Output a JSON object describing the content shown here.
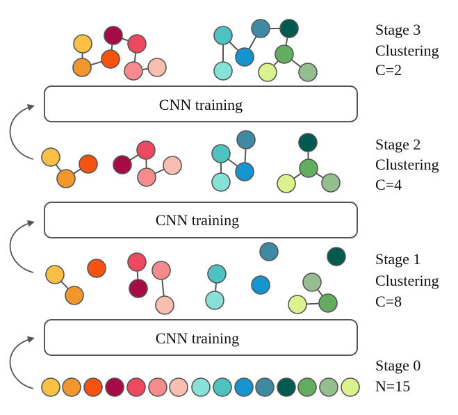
{
  "colors": {
    "n1": "#F8C146",
    "n2": "#F2962E",
    "n3": "#F65313",
    "n4": "#A60B46",
    "n5": "#ED4960",
    "n6": "#F68A8D",
    "n7": "#F8BFB1",
    "n8": "#86E2D6",
    "n9": "#4DC2C1",
    "n10": "#1594CF",
    "n11": "#3F8AA2",
    "n12": "#005A4F",
    "n13": "#63AE5E",
    "n14": "#94BE8D",
    "n15": "#DAF38E"
  },
  "boxes": [
    {
      "label": "CNN training"
    },
    {
      "label": "CNN training"
    },
    {
      "label": "CNN training"
    }
  ],
  "stages": [
    {
      "lines": [
        "Stage 0",
        "N=15"
      ]
    },
    {
      "lines": [
        "Stage 1",
        "Clustering",
        "C=8"
      ]
    },
    {
      "lines": [
        "Stage 2",
        "Clustering",
        "C=4"
      ]
    },
    {
      "lines": [
        "Stage 3",
        "Clustering",
        "C=2"
      ]
    }
  ]
}
